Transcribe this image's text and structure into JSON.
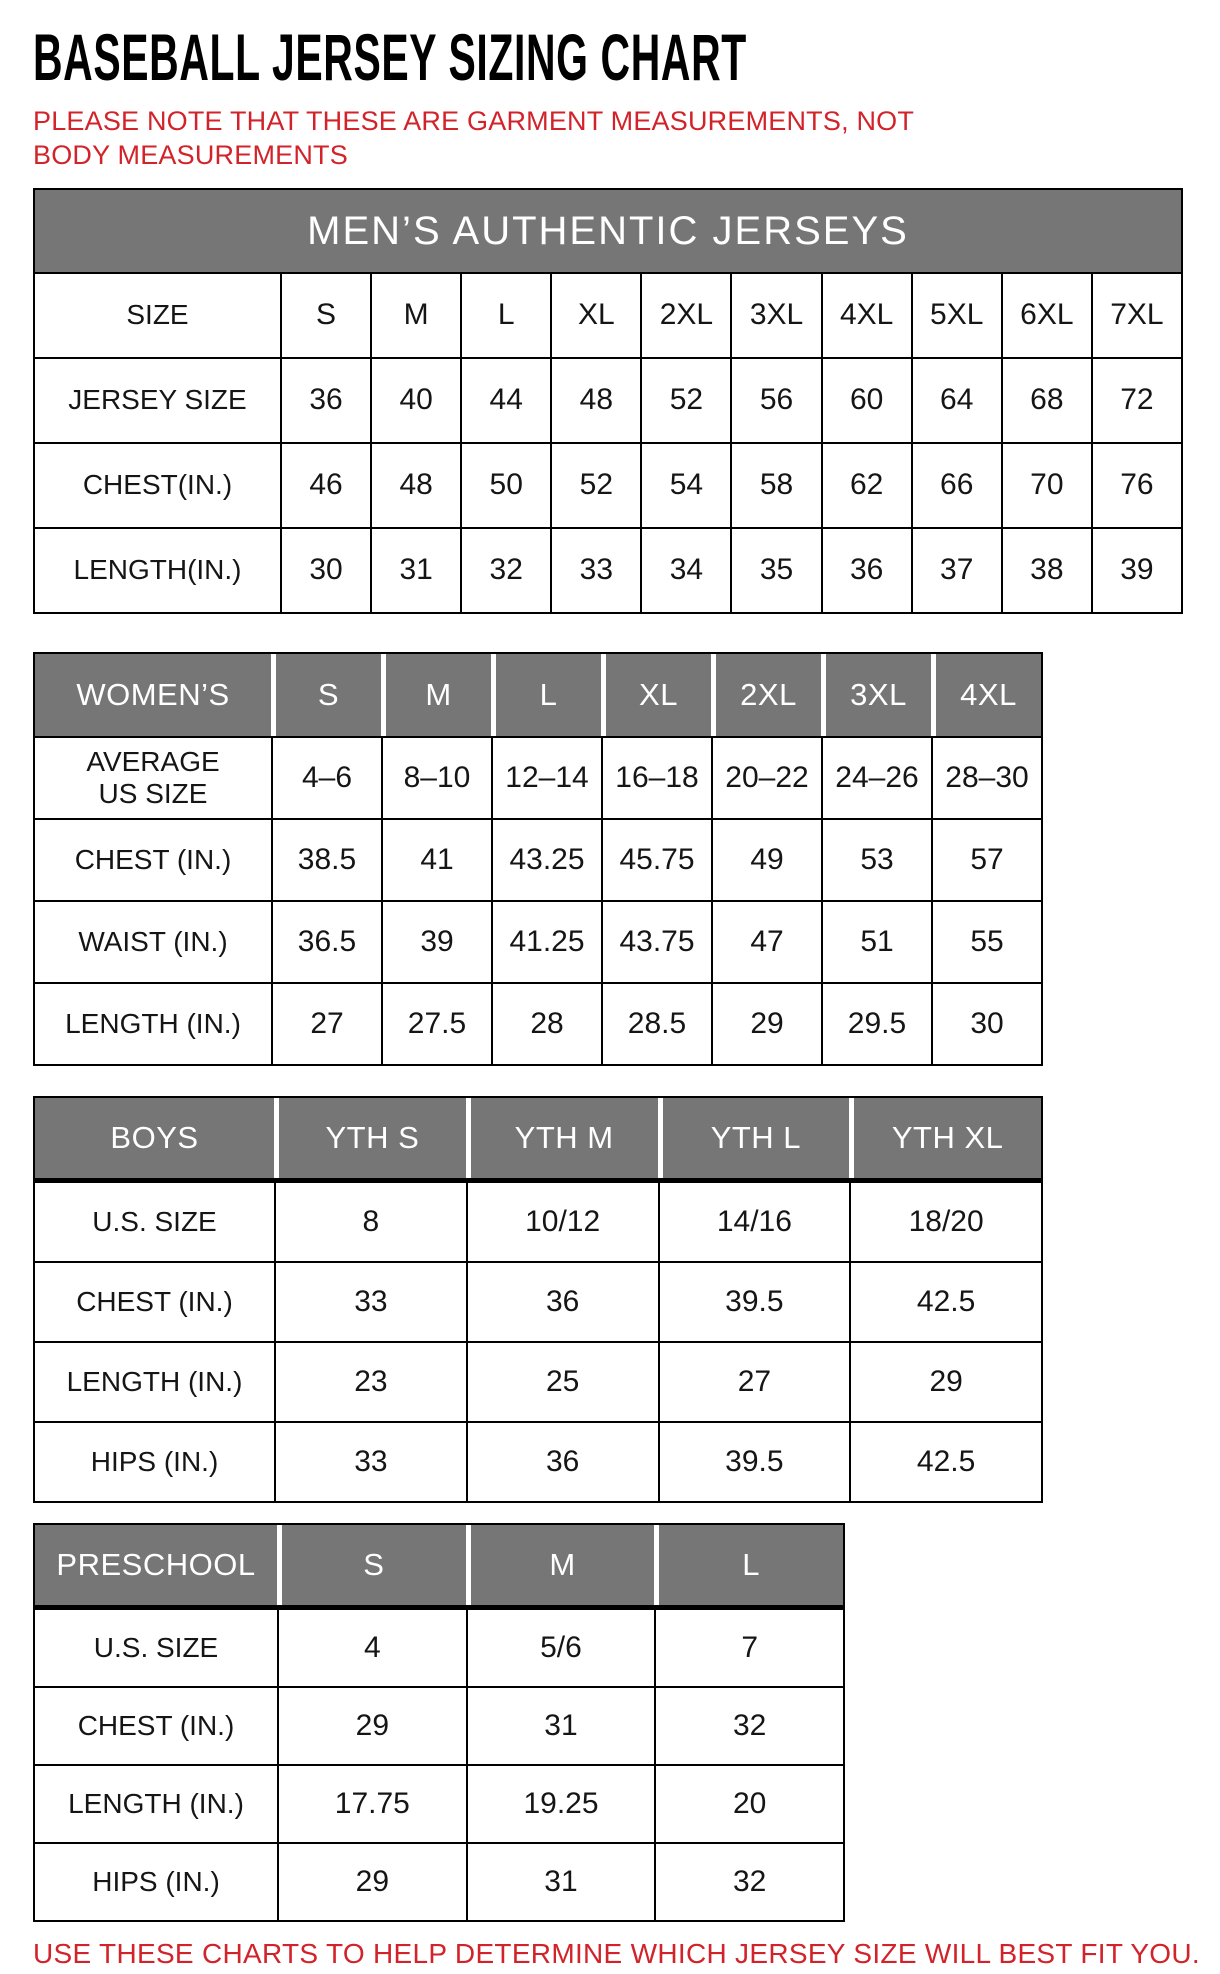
{
  "page": {
    "title": "BASEBALL JERSEY SIZING CHART",
    "note": "PLEASE NOTE THAT THESE ARE GARMENT MEASUREMENTS, NOT BODY MEASUREMENTS",
    "footer": "USE THESE CHARTS TO HELP DETERMINE WHICH JERSEY SIZE WILL BEST FIT YOU.",
    "colors": {
      "accent_red": "#d2232a",
      "header_gray": "#767676",
      "table_border": "#000000"
    }
  },
  "tables": [
    {
      "name": "mens",
      "banner": "MEN’S AUTHENTIC JERSEYS",
      "header": {
        "label": "SIZE",
        "cells": [
          "S",
          "M",
          "L",
          "XL",
          "2XL",
          "3XL",
          "4XL",
          "5XL",
          "6XL",
          "7XL"
        ]
      },
      "rows": [
        {
          "label": "JERSEY SIZE",
          "values": [
            "36",
            "40",
            "44",
            "48",
            "52",
            "56",
            "60",
            "64",
            "68",
            "72"
          ]
        },
        {
          "label": "CHEST(IN.)",
          "values": [
            "46",
            "48",
            "50",
            "52",
            "54",
            "58",
            "62",
            "66",
            "70",
            "76"
          ]
        },
        {
          "label": "LENGTH(IN.)",
          "values": [
            "30",
            "31",
            "32",
            "33",
            "34",
            "35",
            "36",
            "37",
            "38",
            "39"
          ]
        }
      ]
    },
    {
      "name": "womens",
      "header": {
        "label": "WOMEN’S",
        "cells": [
          "S",
          "M",
          "L",
          "XL",
          "2XL",
          "3XL",
          "4XL"
        ]
      },
      "rows": [
        {
          "label": "AVERAGE\nUS SIZE",
          "values": [
            "4–6",
            "8–10",
            "12–14",
            "16–18",
            "20–22",
            "24–26",
            "28–30"
          ]
        },
        {
          "label": "CHEST (IN.)",
          "values": [
            "38.5",
            "41",
            "43.25",
            "45.75",
            "49",
            "53",
            "57"
          ]
        },
        {
          "label": "WAIST (IN.)",
          "values": [
            "36.5",
            "39",
            "41.25",
            "43.75",
            "47",
            "51",
            "55"
          ]
        },
        {
          "label": "LENGTH (IN.)",
          "values": [
            "27",
            "27.5",
            "28",
            "28.5",
            "29",
            "29.5",
            "30"
          ]
        }
      ]
    },
    {
      "name": "boys",
      "header": {
        "label": "BOYS",
        "cells": [
          "YTH S",
          "YTH M",
          "YTH L",
          "YTH XL"
        ]
      },
      "rows": [
        {
          "label": "U.S. SIZE",
          "values": [
            "8",
            "10/12",
            "14/16",
            "18/20"
          ]
        },
        {
          "label": "CHEST (IN.)",
          "values": [
            "33",
            "36",
            "39.5",
            "42.5"
          ]
        },
        {
          "label": "LENGTH (IN.)",
          "values": [
            "23",
            "25",
            "27",
            "29"
          ]
        },
        {
          "label": "HIPS (IN.)",
          "values": [
            "33",
            "36",
            "39.5",
            "42.5"
          ]
        }
      ]
    },
    {
      "name": "preschool",
      "header": {
        "label": "PRESCHOOL",
        "cells": [
          "S",
          "M",
          "L"
        ]
      },
      "rows": [
        {
          "label": "U.S. SIZE",
          "values": [
            "4",
            "5/6",
            "7"
          ]
        },
        {
          "label": "CHEST (IN.)",
          "values": [
            "29",
            "31",
            "32"
          ]
        },
        {
          "label": "LENGTH (IN.)",
          "values": [
            "17.75",
            "19.25",
            "20"
          ]
        },
        {
          "label": "HIPS (IN.)",
          "values": [
            "29",
            "31",
            "32"
          ]
        }
      ]
    }
  ]
}
